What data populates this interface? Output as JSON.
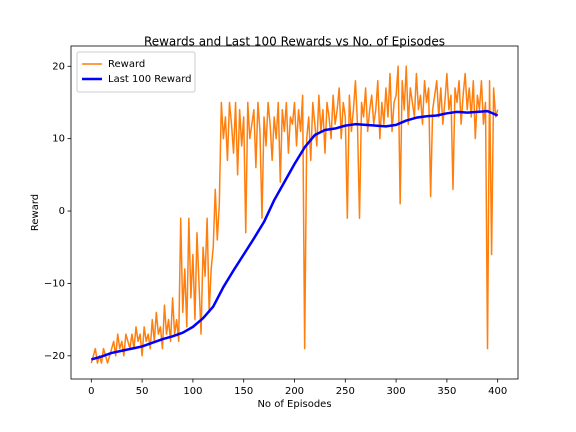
{
  "chart_data": {
    "type": "line",
    "title": "Rewards and Last 100 Rewards vs No. of Episodes",
    "xlabel": "No of Episodes",
    "ylabel": "Reward",
    "xlim": [
      -20,
      420
    ],
    "ylim": [
      -23.2,
      22.8
    ],
    "xticks": [
      0,
      50,
      100,
      150,
      200,
      250,
      300,
      350,
      400
    ],
    "yticks": [
      {
        "value": -20,
        "label": "−20"
      },
      {
        "value": -10,
        "label": "−10"
      },
      0,
      10,
      20
    ],
    "legend": "upper left",
    "grid": false,
    "series": [
      {
        "name": "Reward",
        "color": "#ff7f0e",
        "linewidth": 1.5,
        "x": [
          0,
          2,
          4,
          6,
          8,
          10,
          12,
          14,
          16,
          18,
          20,
          22,
          24,
          26,
          28,
          30,
          32,
          34,
          36,
          38,
          40,
          42,
          44,
          46,
          48,
          50,
          52,
          54,
          56,
          58,
          60,
          62,
          64,
          66,
          68,
          70,
          72,
          74,
          76,
          78,
          80,
          82,
          84,
          86,
          88,
          90,
          92,
          94,
          96,
          98,
          100,
          102,
          104,
          106,
          108,
          110,
          112,
          114,
          116,
          118,
          120,
          122,
          124,
          126,
          128,
          130,
          132,
          134,
          136,
          138,
          140,
          142,
          144,
          146,
          148,
          150,
          152,
          154,
          156,
          158,
          160,
          162,
          164,
          166,
          168,
          170,
          172,
          174,
          176,
          178,
          180,
          182,
          184,
          186,
          188,
          190,
          192,
          194,
          196,
          198,
          200,
          202,
          204,
          206,
          208,
          210,
          212,
          214,
          216,
          218,
          220,
          222,
          224,
          226,
          228,
          230,
          232,
          234,
          236,
          238,
          240,
          242,
          244,
          246,
          248,
          250,
          252,
          254,
          256,
          258,
          260,
          262,
          264,
          266,
          268,
          270,
          272,
          274,
          276,
          278,
          280,
          282,
          284,
          286,
          288,
          290,
          292,
          294,
          296,
          298,
          300,
          302,
          304,
          306,
          308,
          310,
          312,
          314,
          316,
          318,
          320,
          322,
          324,
          326,
          328,
          330,
          332,
          334,
          336,
          338,
          340,
          342,
          344,
          346,
          348,
          350,
          352,
          354,
          356,
          358,
          360,
          362,
          364,
          366,
          368,
          370,
          372,
          374,
          376,
          378,
          380,
          382,
          384,
          386,
          388,
          390,
          392,
          394,
          396,
          398,
          400
        ],
        "values": [
          -21,
          -20,
          -19,
          -21,
          -20,
          -21,
          -19,
          -20,
          -21,
          -20,
          -19,
          -18,
          -20,
          -17,
          -19,
          -18,
          -20,
          -17,
          -18,
          -19,
          -17,
          -19,
          -16,
          -18,
          -17,
          -20,
          -16,
          -18,
          -17,
          -19,
          -15,
          -18,
          -14,
          -17,
          -16,
          -19,
          -13,
          -17,
          -15,
          -18,
          -12,
          -17,
          -15,
          -18,
          -1,
          -14,
          -8,
          -16,
          -1,
          -12,
          -6,
          -15,
          -3,
          -10,
          -17,
          -5,
          -9,
          -1,
          -14,
          -8,
          -5,
          3,
          -4,
          1,
          15,
          10,
          13,
          7,
          15,
          12,
          8,
          15,
          5,
          14,
          9,
          13,
          -3,
          15,
          10,
          12,
          14,
          6,
          15,
          11,
          -1,
          13,
          9,
          15,
          12,
          7,
          13,
          10,
          15,
          4,
          14,
          11,
          15,
          8,
          13,
          12,
          15,
          9,
          14,
          11,
          16,
          -19,
          10,
          13,
          7,
          15,
          12,
          9,
          16,
          11,
          14,
          8,
          15,
          13,
          10,
          16,
          12,
          14,
          17,
          10,
          15,
          13,
          -1,
          16,
          11,
          14,
          18,
          12,
          -1,
          15,
          13,
          17,
          11,
          14,
          16,
          12,
          14,
          18,
          10,
          15,
          12,
          17,
          13,
          19,
          11,
          15,
          16,
          20,
          1,
          18,
          14,
          20,
          12,
          17,
          15,
          13,
          19,
          14,
          16,
          12,
          18,
          15,
          17,
          2,
          14,
          16,
          18,
          13,
          17,
          12,
          15,
          19,
          14,
          16,
          3,
          17,
          15,
          18,
          12,
          16,
          19,
          14,
          17,
          13,
          18,
          10,
          16,
          14,
          18,
          12,
          15,
          -19,
          18,
          -6,
          17,
          13,
          14
        ]
      },
      {
        "name": "Last 100 Reward",
        "color": "#0000ff",
        "linewidth": 2.5,
        "x": [
          0,
          10,
          20,
          30,
          40,
          50,
          60,
          70,
          80,
          90,
          100,
          110,
          120,
          130,
          140,
          150,
          160,
          170,
          180,
          190,
          200,
          210,
          220,
          230,
          240,
          250,
          260,
          270,
          280,
          290,
          300,
          310,
          320,
          330,
          340,
          350,
          360,
          370,
          380,
          390,
          400
        ],
        "values": [
          -20.5,
          -20.1,
          -19.6,
          -19.3,
          -19.0,
          -18.7,
          -18.2,
          -17.7,
          -17.3,
          -16.8,
          -16.0,
          -14.8,
          -13.2,
          -10.5,
          -8.2,
          -6.0,
          -3.8,
          -1.5,
          1.5,
          4.0,
          6.5,
          8.8,
          10.5,
          11.2,
          11.4,
          11.8,
          12.0,
          11.9,
          11.8,
          11.7,
          11.9,
          12.5,
          12.9,
          13.1,
          13.2,
          13.5,
          13.7,
          13.6,
          13.7,
          13.8,
          13.2
        ]
      }
    ]
  }
}
